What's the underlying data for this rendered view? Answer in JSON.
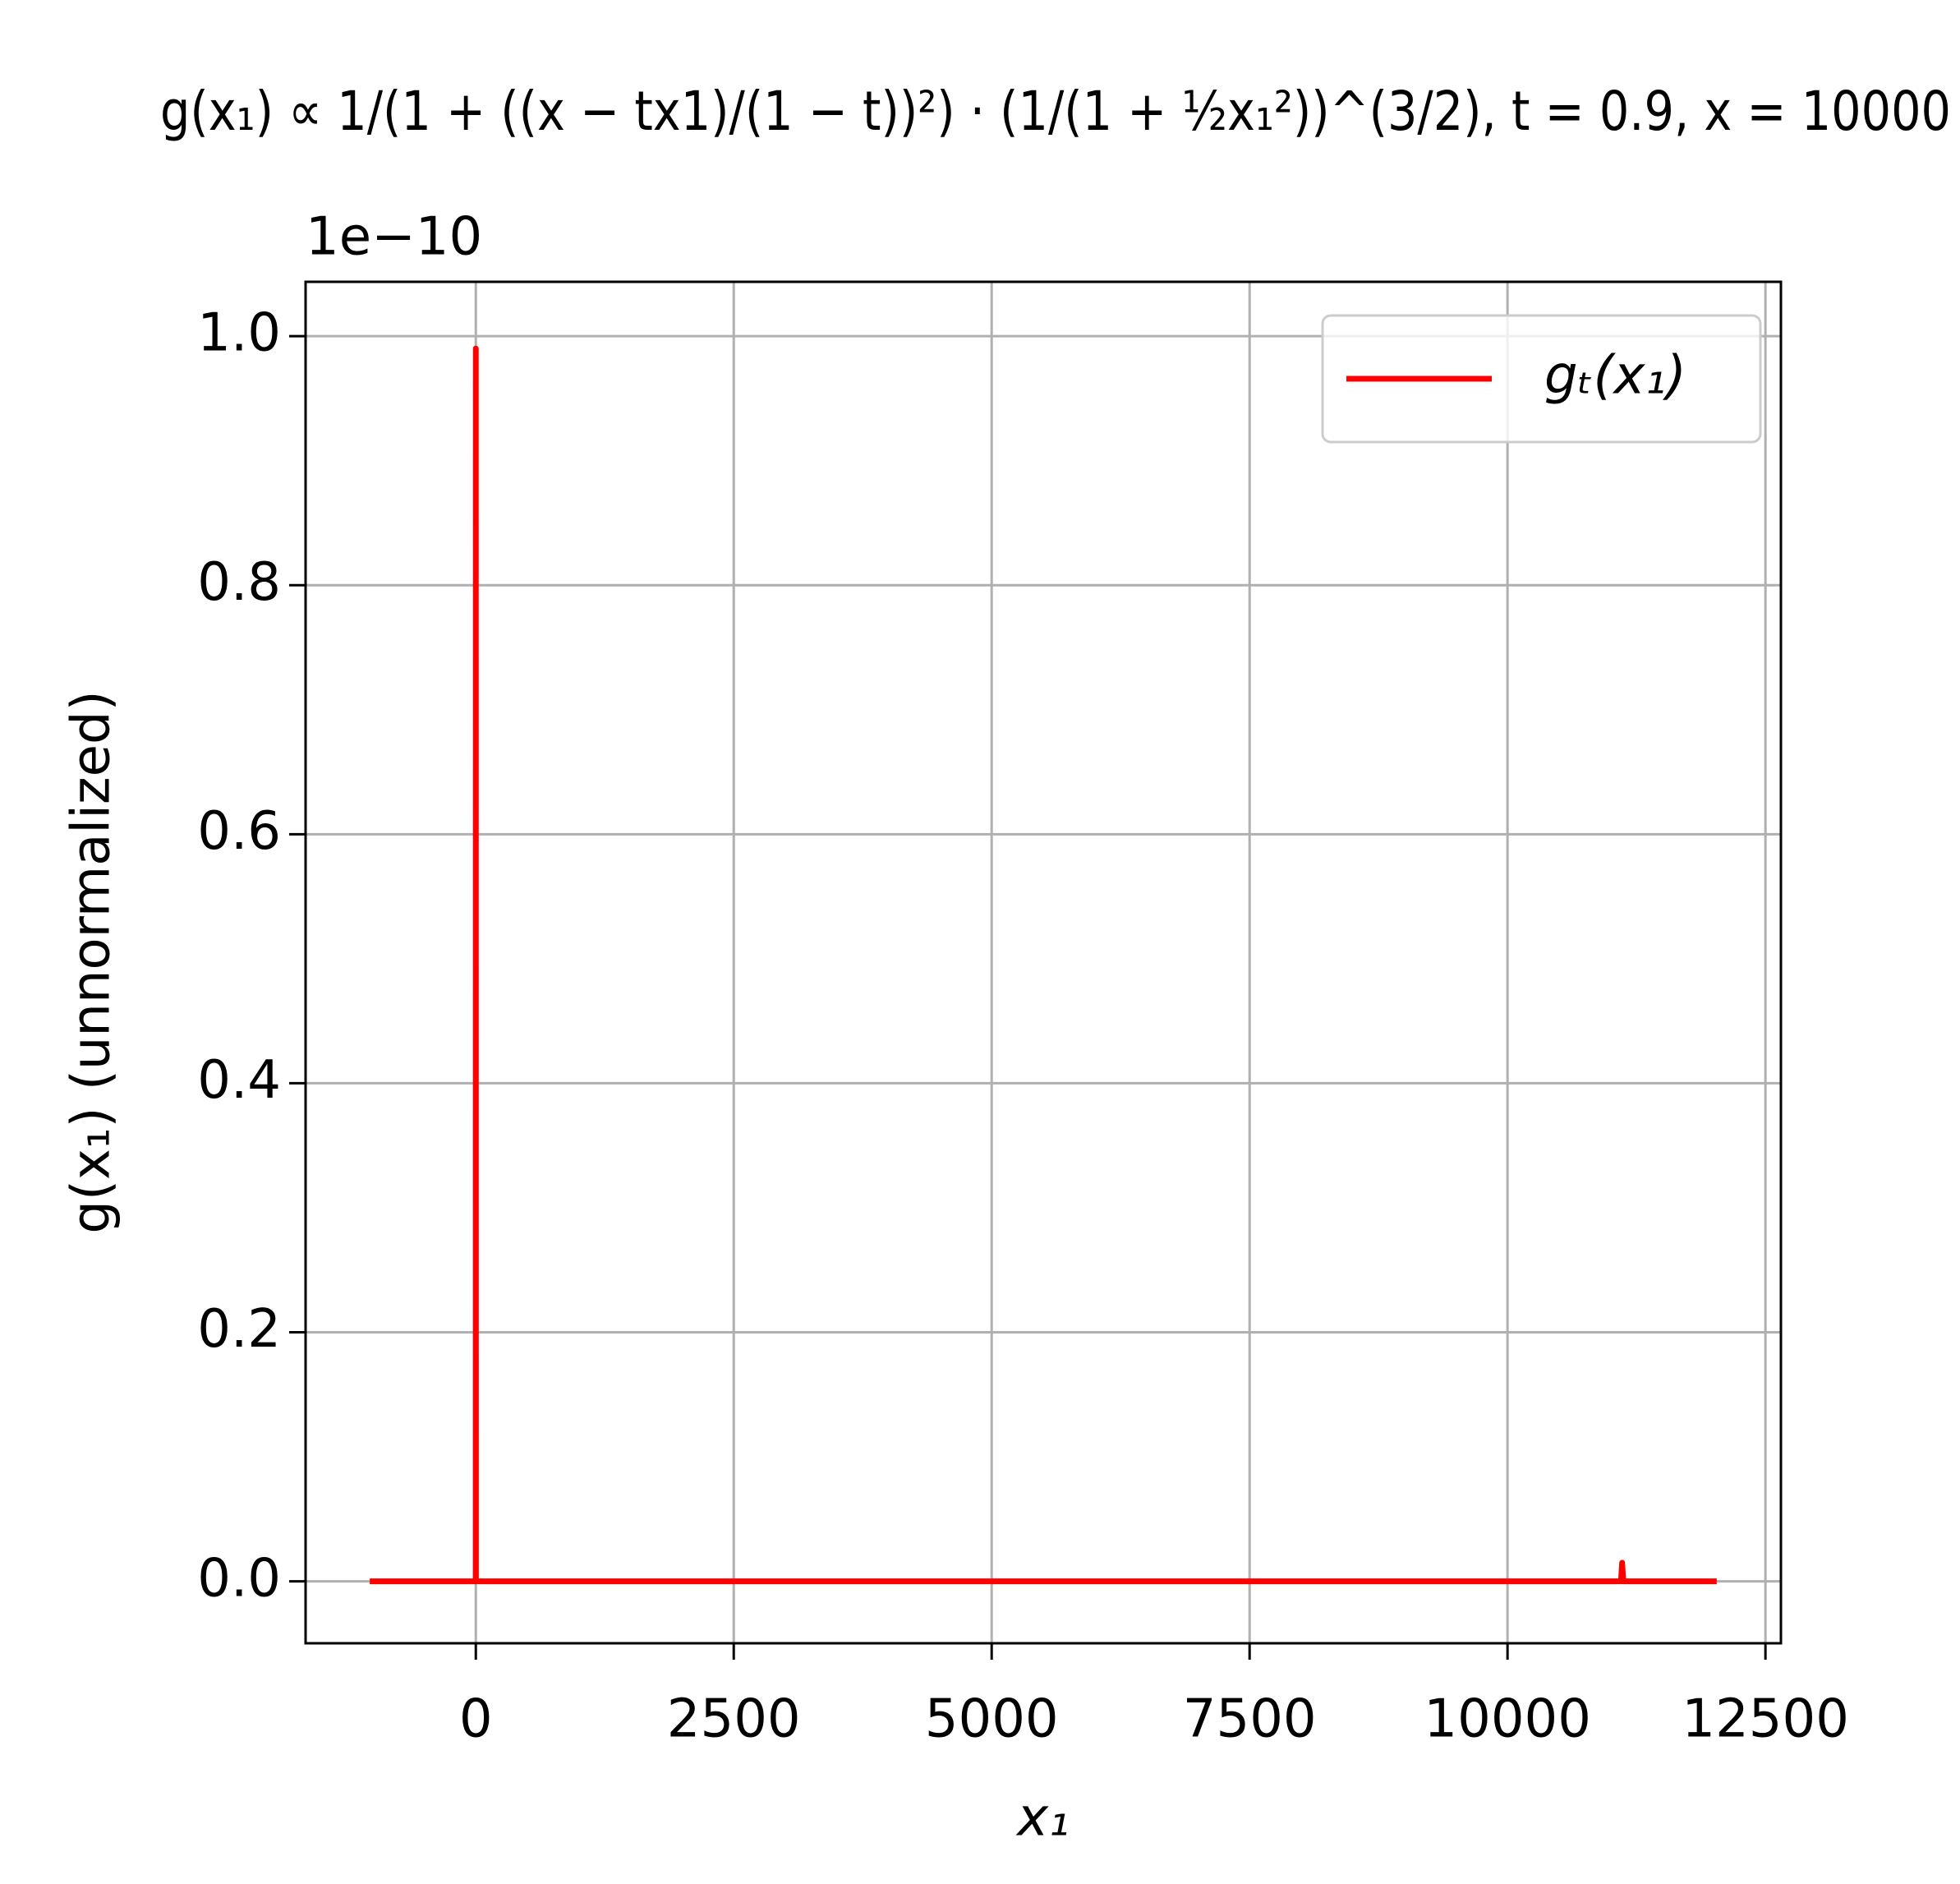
{
  "chart_data": {
    "type": "line",
    "title": "g(x₁) ∝ 1/(1 + ((x − tx1)/(1 − t))²) · (1/(1 + ½x₁²))^(3/2), t = 0.9, x = 10000",
    "x_label": "x₁",
    "y_label": "g(x₁) (unnormalized)",
    "y_offset_text": "1e−10",
    "x": [
      -1000,
      -1,
      0,
      1,
      11100,
      11111,
      11122,
      12000
    ],
    "series": [
      {
        "name": "gₜ(x₁)",
        "color": "#ff0000",
        "values": [
          0,
          0,
          0.99,
          0,
          0,
          0.015,
          0,
          0
        ]
      }
    ],
    "xlim": [
      -1650,
      12650
    ],
    "xticks": [
      0,
      2500,
      5000,
      7500,
      10000,
      12500
    ],
    "ylim": [
      -0.0497,
      1.0436
    ],
    "yticks": [
      {
        "value": 0,
        "label": "0.0"
      },
      0.2,
      0.4,
      0.6,
      0.8,
      {
        "value": 1,
        "label": "1.0"
      }
    ],
    "grid": true,
    "legend": "upper-right"
  }
}
